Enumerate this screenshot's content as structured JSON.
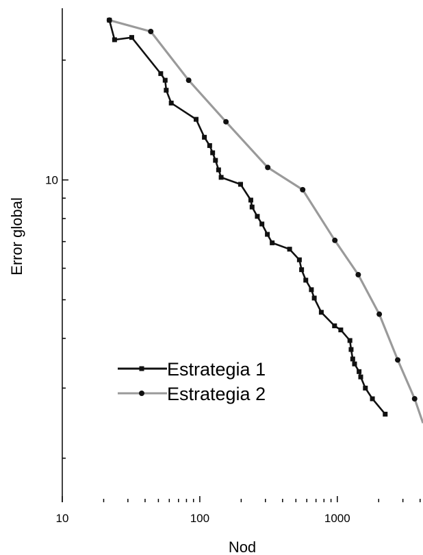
{
  "chart_data": {
    "type": "line",
    "xscale": "log",
    "yscale": "log",
    "xlabel": "Nod",
    "ylabel": "Error global",
    "xlim": [
      10,
      4200
    ],
    "ylim": [
      1.55,
      27
    ],
    "xticks": [
      {
        "value": 10,
        "label": "10"
      },
      {
        "value": 100,
        "label": "100"
      },
      {
        "value": 1000,
        "label": "1000"
      }
    ],
    "yticks": [
      {
        "value": 10,
        "label": "10"
      }
    ],
    "grid": false,
    "legend": "bottom-left",
    "series": [
      {
        "name": "Estrategia 1",
        "color": "#111111",
        "marker": "square",
        "x": [
          22,
          24,
          32,
          52,
          56,
          57,
          62,
          94,
          108,
          118,
          124,
          130,
          137,
          143,
          198,
          235,
          240,
          262,
          283,
          310,
          336,
          450,
          530,
          550,
          590,
          648,
          680,
          765,
          955,
          1060,
          1235,
          1260,
          1295,
          1335,
          1440,
          1480,
          1600,
          1800,
          2230
        ],
        "y": [
          25.2,
          22.5,
          22.8,
          18.5,
          17.8,
          16.8,
          15.6,
          14.2,
          12.8,
          12.2,
          11.7,
          11.2,
          10.6,
          10.15,
          9.75,
          8.9,
          8.55,
          8.1,
          7.75,
          7.3,
          6.95,
          6.7,
          6.3,
          5.95,
          5.6,
          5.3,
          5.05,
          4.65,
          4.3,
          4.2,
          3.95,
          3.75,
          3.55,
          3.45,
          3.3,
          3.2,
          3.0,
          2.82,
          2.58
        ]
      },
      {
        "name": "Estrategia 2",
        "color": "#9a9a9a",
        "marker": "circle",
        "x": [
          22,
          44,
          83,
          155,
          312,
          560,
          960,
          1420,
          2020,
          2750,
          3650,
          4200
        ],
        "y": [
          25.2,
          23.6,
          17.8,
          14.0,
          10.75,
          9.45,
          7.05,
          5.78,
          4.6,
          3.53,
          2.82,
          2.45
        ]
      }
    ]
  }
}
